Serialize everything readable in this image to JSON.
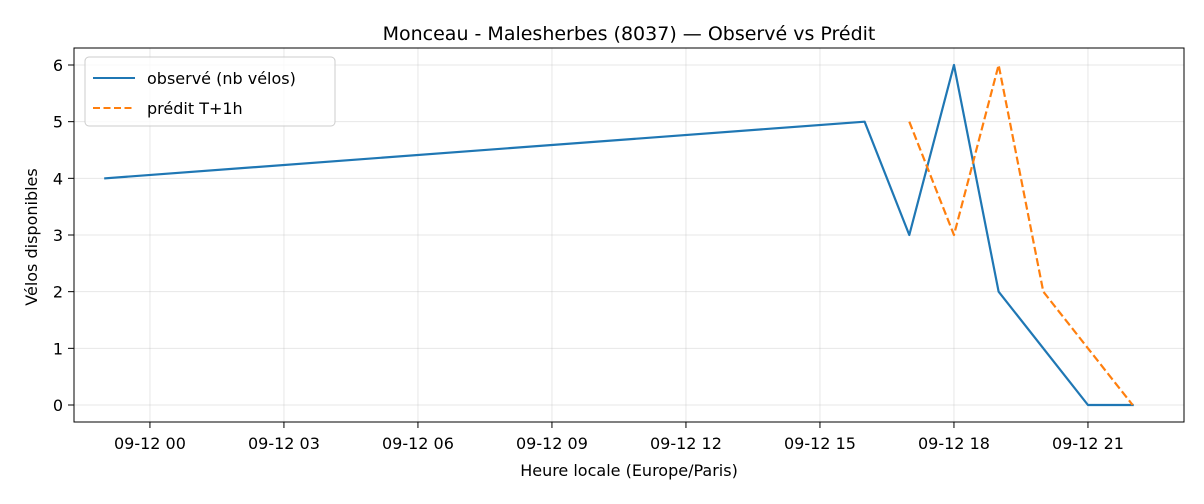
{
  "chart_data": {
    "type": "line",
    "title": "Monceau - Malesherbes (8037) — Observé vs Prédit",
    "xlabel": "Heure locale (Europe/Paris)",
    "ylabel": "Vélos disponibles",
    "x_ticks": [
      "09-12 00",
      "09-12 03",
      "09-12 06",
      "09-12 09",
      "09-12 12",
      "09-12 15",
      "09-12 18",
      "09-12 21"
    ],
    "y_ticks": [
      "0",
      "1",
      "2",
      "3",
      "4",
      "5",
      "6"
    ],
    "ylim": [
      -0.3,
      6.3
    ],
    "grid": true,
    "legend_position": "top-left",
    "series": [
      {
        "name": "observé (nb vélos)",
        "color": "#1f77b4",
        "dash": "solid",
        "points": [
          {
            "x": "09-11 23:00",
            "y": 4
          },
          {
            "x": "09-12 16:00",
            "y": 5
          },
          {
            "x": "09-12 17:00",
            "y": 3
          },
          {
            "x": "09-12 18:00",
            "y": 6
          },
          {
            "x": "09-12 19:00",
            "y": 2
          },
          {
            "x": "09-12 21:00",
            "y": 0
          },
          {
            "x": "09-12 22:00",
            "y": 0
          }
        ]
      },
      {
        "name": "prédit T+1h",
        "color": "#ff7f0e",
        "dash": "dashed",
        "points": [
          {
            "x": "09-12 17:00",
            "y": 5
          },
          {
            "x": "09-12 18:00",
            "y": 3
          },
          {
            "x": "09-12 19:00",
            "y": 6
          },
          {
            "x": "09-12 20:00",
            "y": 2
          },
          {
            "x": "09-12 22:00",
            "y": 0
          }
        ]
      }
    ]
  }
}
